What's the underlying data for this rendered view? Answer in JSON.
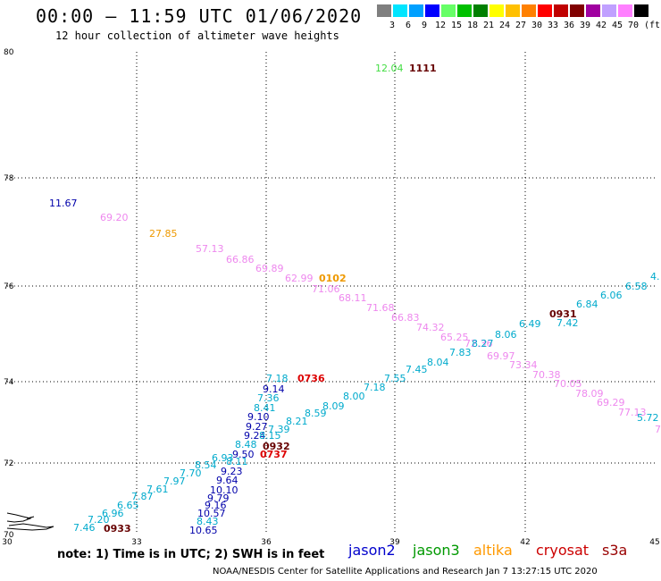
{
  "header": {
    "title": "00:00 – 11:59 UTC 01/06/2020",
    "subtitle": "12 hour collection of altimeter wave heights"
  },
  "scale": {
    "colors": [
      "#7f7f7f",
      "#00e5ff",
      "#00a0ff",
      "#0000ff",
      "#66ff66",
      "#00c000",
      "#008000",
      "#ffff00",
      "#ffc000",
      "#ff8000",
      "#ff0000",
      "#c00000",
      "#800000",
      "#a000a0",
      "#c0a0ff",
      "#ff80ff",
      "#000000"
    ],
    "labels": [
      "3",
      "6",
      "9",
      "12",
      "15",
      "18",
      "21",
      "24",
      "27",
      "30",
      "33",
      "36",
      "39",
      "42",
      "45",
      "70"
    ],
    "unit": "(ft)"
  },
  "axes": {
    "x_ticks": [
      "30",
      "33",
      "36",
      "39",
      "42",
      "45"
    ],
    "y_ticks": [
      "80",
      "78",
      "76",
      "74",
      "72",
      "70"
    ]
  },
  "legend": {
    "jason2": {
      "label": "jason2",
      "color": "#0000cc"
    },
    "jason3": {
      "label": "jason3",
      "color": "#009900"
    },
    "altika": {
      "label": "altika",
      "color": "#ff9900"
    },
    "cryosat": {
      "label": "cryosat",
      "color": "#cc0000"
    },
    "s3a": {
      "label": "s3a",
      "color": "#990000"
    }
  },
  "footer": {
    "note": "note: 1) Time is in UTC; 2) SWH is in feet",
    "credit": "NOAA/NESDIS Center for Satellite Applications and Research   Jan  7 13:27:15 UTC 2020"
  },
  "labels": [
    {
      "t": "12.04",
      "c": "#44dd44"
    },
    {
      "t": "1111",
      "c": "#660000"
    },
    {
      "t": "11.67",
      "c": "#0000aa"
    },
    {
      "t": "69.20",
      "c": "#ee88ee"
    },
    {
      "t": "27.85",
      "c": "#ee9900"
    },
    {
      "t": "57.13",
      "c": "#ee88ee"
    },
    {
      "t": "66.86",
      "c": "#ee88ee"
    },
    {
      "t": "69.89",
      "c": "#ee88ee"
    },
    {
      "t": "62.99",
      "c": "#ee88ee"
    },
    {
      "t": "0102",
      "c": "#ee9900"
    },
    {
      "t": "71.06",
      "c": "#ee88ee"
    },
    {
      "t": "68.11",
      "c": "#ee88ee"
    },
    {
      "t": "71.68",
      "c": "#ee88ee"
    },
    {
      "t": "66.83",
      "c": "#ee88ee"
    },
    {
      "t": "74.32",
      "c": "#ee88ee"
    },
    {
      "t": "65.25",
      "c": "#ee88ee"
    },
    {
      "t": "72.36",
      "c": "#ee88ee"
    },
    {
      "t": "69.97",
      "c": "#ee88ee"
    },
    {
      "t": "73.34",
      "c": "#ee88ee"
    },
    {
      "t": "70.38",
      "c": "#ee88ee"
    },
    {
      "t": "70.05",
      "c": "#ee88ee"
    },
    {
      "t": "78.09",
      "c": "#ee88ee"
    },
    {
      "t": "69.29",
      "c": "#ee88ee"
    },
    {
      "t": "77.13",
      "c": "#ee88ee"
    },
    {
      "t": "5.72",
      "c": "#00aacc"
    },
    {
      "t": "6.58",
      "c": "#00aacc"
    },
    {
      "t": "6.06",
      "c": "#00aacc"
    },
    {
      "t": "6.84",
      "c": "#00aacc"
    },
    {
      "t": "0931",
      "c": "#660000"
    },
    {
      "t": "7.42",
      "c": "#00aacc"
    },
    {
      "t": "6.49",
      "c": "#00aacc"
    },
    {
      "t": "8.06",
      "c": "#00aacc"
    },
    {
      "t": "8.27",
      "c": "#00aacc"
    },
    {
      "t": "7.83",
      "c": "#00aacc"
    },
    {
      "t": "8.04",
      "c": "#00aacc"
    },
    {
      "t": "7.45",
      "c": "#00aacc"
    },
    {
      "t": "7.55",
      "c": "#00aacc"
    },
    {
      "t": "7.18",
      "c": "#00aacc"
    },
    {
      "t": "8.00",
      "c": "#00aacc"
    },
    {
      "t": "8.09",
      "c": "#00aacc"
    },
    {
      "t": "8.59",
      "c": "#00aacc"
    },
    {
      "t": "8.21",
      "c": "#00aacc"
    },
    {
      "t": "7.39",
      "c": "#00aacc"
    },
    {
      "t": "7.18",
      "c": "#00aacc"
    },
    {
      "t": "0736",
      "c": "#dd0000"
    },
    {
      "t": "9.14",
      "c": "#0000aa"
    },
    {
      "t": "7.36",
      "c": "#00aacc"
    },
    {
      "t": "8.41",
      "c": "#00aacc"
    },
    {
      "t": "9.10",
      "c": "#0000aa"
    },
    {
      "t": "9.27",
      "c": "#0000aa"
    },
    {
      "t": "9.24",
      "c": "#0000aa"
    },
    {
      "t": "8.15",
      "c": "#00aacc"
    },
    {
      "t": "8.48",
      "c": "#00aacc"
    },
    {
      "t": "0932",
      "c": "#660000"
    },
    {
      "t": "0737",
      "c": "#dd0000"
    },
    {
      "t": "9.50",
      "c": "#0000aa"
    },
    {
      "t": "6.93",
      "c": "#00aacc"
    },
    {
      "t": "8.11",
      "c": "#00aacc"
    },
    {
      "t": "8.54",
      "c": "#00aacc"
    },
    {
      "t": "9.23",
      "c": "#0000aa"
    },
    {
      "t": "7.70",
      "c": "#00aacc"
    },
    {
      "t": "9.64",
      "c": "#0000aa"
    },
    {
      "t": "7.97",
      "c": "#00aacc"
    },
    {
      "t": "10.10",
      "c": "#0000aa"
    },
    {
      "t": "7.61",
      "c": "#00aacc"
    },
    {
      "t": "9.79",
      "c": "#0000aa"
    },
    {
      "t": "7.87",
      "c": "#00aacc"
    },
    {
      "t": "9.16",
      "c": "#0000aa"
    },
    {
      "t": "6.65",
      "c": "#00aacc"
    },
    {
      "t": "10.57",
      "c": "#0000aa"
    },
    {
      "t": "6.96",
      "c": "#00aacc"
    },
    {
      "t": "7.20",
      "c": "#00aacc"
    },
    {
      "t": "8.43",
      "c": "#00aacc"
    },
    {
      "t": "7.46",
      "c": "#00aacc"
    },
    {
      "t": "0933",
      "c": "#660000"
    },
    {
      "t": "10.65",
      "c": "#0000aa"
    },
    {
      "t": "4.",
      "c": "#00aacc"
    },
    {
      "t": "7",
      "c": "#ee88ee"
    }
  ]
}
